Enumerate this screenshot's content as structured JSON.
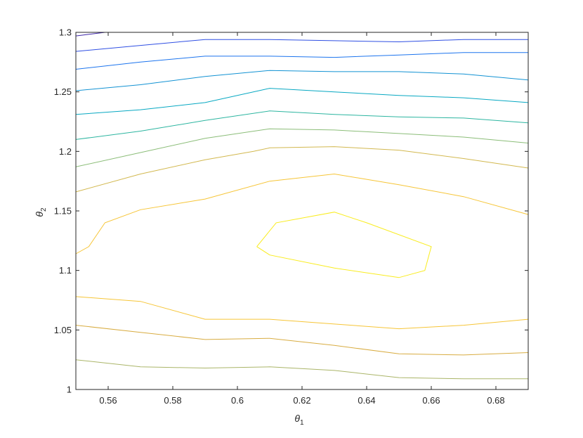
{
  "chart_data": {
    "type": "contour",
    "xlabel": "θ",
    "xlabel_sub": "1",
    "ylabel": "θ",
    "ylabel_sub": "2",
    "xlim": [
      0.55,
      0.69
    ],
    "ylim": [
      1.0,
      1.3
    ],
    "xticks": [
      0.56,
      0.58,
      0.6,
      0.62,
      0.64,
      0.66,
      0.68
    ],
    "xtick_labels": [
      "0.56",
      "0.58",
      "0.6",
      "0.62",
      "0.64",
      "0.66",
      "0.68"
    ],
    "yticks": [
      1.0,
      1.05,
      1.1,
      1.15,
      1.2,
      1.25,
      1.3
    ],
    "ytick_labels": [
      "1",
      "1.05",
      "1.1",
      "1.15",
      "1.2",
      "1.25",
      "1.3"
    ],
    "grid": false,
    "box": true,
    "colormap": "parula",
    "series": [
      {
        "color": "#3e26a8",
        "points": [
          [
            0.55,
            1.297
          ],
          [
            0.559,
            1.3
          ]
        ]
      },
      {
        "color": "#2f4fe3",
        "points": [
          [
            0.55,
            1.284
          ],
          [
            0.57,
            1.289
          ],
          [
            0.59,
            1.294
          ],
          [
            0.61,
            1.294
          ],
          [
            0.63,
            1.293
          ],
          [
            0.65,
            1.292
          ],
          [
            0.67,
            1.294
          ],
          [
            0.69,
            1.294
          ]
        ]
      },
      {
        "color": "#1c74ee",
        "points": [
          [
            0.55,
            1.269
          ],
          [
            0.57,
            1.275
          ],
          [
            0.59,
            1.28
          ],
          [
            0.61,
            1.28
          ],
          [
            0.63,
            1.279
          ],
          [
            0.65,
            1.281
          ],
          [
            0.67,
            1.283
          ],
          [
            0.69,
            1.283
          ]
        ]
      },
      {
        "color": "#1292d3",
        "points": [
          [
            0.55,
            1.251
          ],
          [
            0.57,
            1.256
          ],
          [
            0.59,
            1.263
          ],
          [
            0.61,
            1.268
          ],
          [
            0.63,
            1.267
          ],
          [
            0.65,
            1.267
          ],
          [
            0.67,
            1.265
          ],
          [
            0.69,
            1.26
          ]
        ]
      },
      {
        "color": "#07a8c2",
        "points": [
          [
            0.55,
            1.231
          ],
          [
            0.57,
            1.235
          ],
          [
            0.59,
            1.241
          ],
          [
            0.61,
            1.253
          ],
          [
            0.63,
            1.25
          ],
          [
            0.65,
            1.247
          ],
          [
            0.67,
            1.245
          ],
          [
            0.69,
            1.241
          ]
        ]
      },
      {
        "color": "#2cb5a0",
        "points": [
          [
            0.55,
            1.21
          ],
          [
            0.57,
            1.217
          ],
          [
            0.59,
            1.226
          ],
          [
            0.61,
            1.234
          ],
          [
            0.63,
            1.231
          ],
          [
            0.65,
            1.229
          ],
          [
            0.67,
            1.228
          ],
          [
            0.69,
            1.224
          ]
        ]
      },
      {
        "color": "#8bbd78",
        "points": [
          [
            0.55,
            1.187
          ],
          [
            0.57,
            1.199
          ],
          [
            0.59,
            1.211
          ],
          [
            0.61,
            1.219
          ],
          [
            0.63,
            1.218
          ],
          [
            0.65,
            1.215
          ],
          [
            0.67,
            1.212
          ],
          [
            0.69,
            1.207
          ]
        ]
      },
      {
        "color": "#d2b84f",
        "points": [
          [
            0.55,
            1.166
          ],
          [
            0.57,
            1.181
          ],
          [
            0.59,
            1.193
          ],
          [
            0.605,
            1.2
          ],
          [
            0.61,
            1.203
          ],
          [
            0.63,
            1.204
          ],
          [
            0.65,
            1.201
          ],
          [
            0.67,
            1.194
          ],
          [
            0.69,
            1.186
          ]
        ]
      },
      {
        "color": "#f6c537",
        "points": [
          [
            0.55,
            1.114
          ],
          [
            0.554,
            1.12
          ],
          [
            0.559,
            1.14
          ],
          [
            0.57,
            1.151
          ],
          [
            0.59,
            1.16
          ],
          [
            0.61,
            1.175
          ],
          [
            0.63,
            1.181
          ],
          [
            0.65,
            1.172
          ],
          [
            0.67,
            1.162
          ],
          [
            0.69,
            1.147
          ]
        ]
      },
      {
        "color": "#f9ec1e",
        "points": [
          [
            0.606,
            1.12
          ],
          [
            0.612,
            1.14
          ],
          [
            0.63,
            1.149
          ],
          [
            0.64,
            1.14
          ],
          [
            0.66,
            1.12
          ],
          [
            0.658,
            1.1
          ],
          [
            0.65,
            1.094
          ],
          [
            0.63,
            1.102
          ],
          [
            0.61,
            1.113
          ],
          [
            0.606,
            1.12
          ]
        ]
      },
      {
        "color": "#f6c537",
        "points": [
          [
            0.55,
            1.078
          ],
          [
            0.57,
            1.074
          ],
          [
            0.59,
            1.059
          ],
          [
            0.61,
            1.059
          ],
          [
            0.63,
            1.055
          ],
          [
            0.65,
            1.051
          ],
          [
            0.67,
            1.054
          ],
          [
            0.69,
            1.059
          ]
        ]
      },
      {
        "color": "#d8ac41",
        "points": [
          [
            0.55,
            1.054
          ],
          [
            0.57,
            1.048
          ],
          [
            0.59,
            1.042
          ],
          [
            0.61,
            1.043
          ],
          [
            0.63,
            1.037
          ],
          [
            0.65,
            1.03
          ],
          [
            0.67,
            1.029
          ],
          [
            0.69,
            1.031
          ]
        ]
      },
      {
        "color": "#aab568",
        "points": [
          [
            0.55,
            1.025
          ],
          [
            0.57,
            1.019
          ],
          [
            0.59,
            1.018
          ],
          [
            0.61,
            1.019
          ],
          [
            0.63,
            1.016
          ],
          [
            0.65,
            1.01
          ],
          [
            0.67,
            1.009
          ],
          [
            0.69,
            1.009
          ]
        ]
      }
    ]
  }
}
